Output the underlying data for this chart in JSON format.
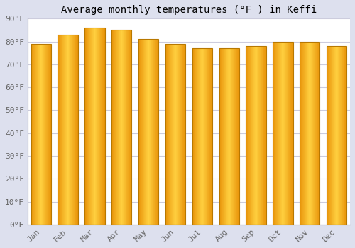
{
  "title": "Average monthly temperatures (°F ) in Keffi",
  "months": [
    "Jan",
    "Feb",
    "Mar",
    "Apr",
    "May",
    "Jun",
    "Jul",
    "Aug",
    "Sep",
    "Oct",
    "Nov",
    "Dec"
  ],
  "values": [
    79,
    83,
    86,
    85,
    81,
    79,
    77,
    77,
    78,
    80,
    80,
    78
  ],
  "ylim": [
    0,
    90
  ],
  "yticks": [
    0,
    10,
    20,
    30,
    40,
    50,
    60,
    70,
    80,
    90
  ],
  "ytick_labels": [
    "0°F",
    "10°F",
    "20°F",
    "30°F",
    "40°F",
    "50°F",
    "60°F",
    "70°F",
    "80°F",
    "90°F"
  ],
  "bg_color": "#ffffff",
  "fig_bg_color": "#dde0ee",
  "grid_color": "#ccccdd",
  "title_fontsize": 10,
  "tick_fontsize": 8,
  "bar_color_left": "#E8940A",
  "bar_color_center": "#FFD040",
  "bar_color_right": "#E8940A",
  "bar_edge_color": "#b87800",
  "bar_width": 0.75
}
